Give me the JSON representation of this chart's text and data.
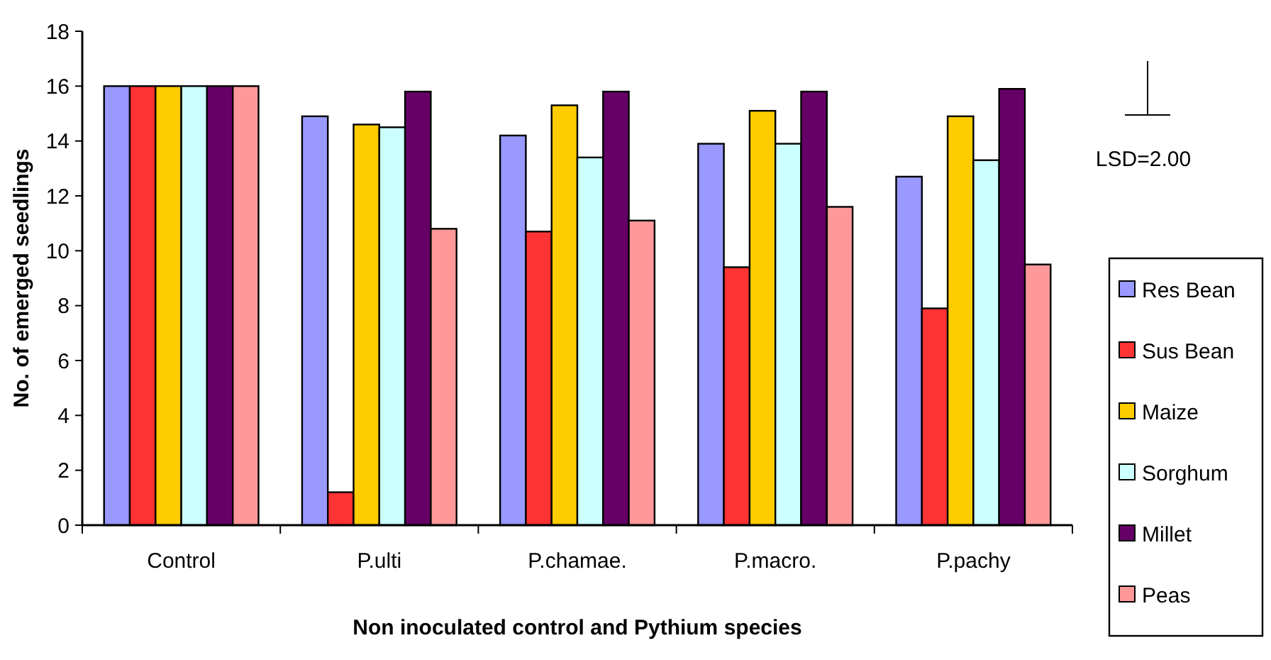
{
  "chart_data": {
    "type": "bar",
    "xlabel": "Non inoculated control and Pythium species",
    "ylabel": "No. of emerged seedlings",
    "categories": [
      "Control",
      "P.ulti",
      "P.chamae.",
      "P.macro.",
      "P.pachy"
    ],
    "series": [
      {
        "name": "Res Bean",
        "color": "#9999ff",
        "values": [
          16,
          14.9,
          14.2,
          13.9,
          12.7
        ]
      },
      {
        "name": "Sus Bean",
        "color": "#ff3333",
        "values": [
          16,
          1.2,
          10.7,
          9.4,
          7.9
        ]
      },
      {
        "name": "Maize",
        "color": "#ffcc00",
        "values": [
          16,
          14.6,
          15.3,
          15.1,
          14.9
        ]
      },
      {
        "name": "Sorghum",
        "color": "#ccffff",
        "values": [
          16,
          14.5,
          13.4,
          13.9,
          13.3
        ]
      },
      {
        "name": "Millet",
        "color": "#660066",
        "values": [
          16,
          15.8,
          15.8,
          15.8,
          15.9
        ]
      },
      {
        "name": "Peas",
        "color": "#ff9999",
        "values": [
          16,
          10.8,
          11.1,
          11.6,
          9.5
        ]
      }
    ],
    "ylim": [
      0,
      18
    ],
    "yticks": [
      0,
      2,
      4,
      6,
      8,
      10,
      12,
      14,
      16,
      18
    ],
    "legend": "right",
    "grid": false,
    "annotations": [
      "LSD=2.00"
    ]
  }
}
